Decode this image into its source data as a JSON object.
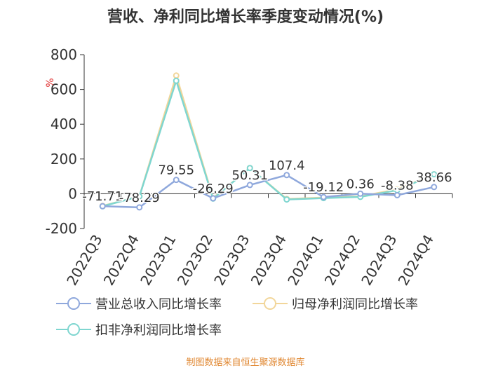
{
  "title": "营收、净利同比增长率季度变动情况(%)",
  "footer": "制图数据来自恒生聚源数据库",
  "colors": {
    "revenue": "#8fa8dc",
    "net_profit": "#f2d69a",
    "deducted_profit": "#7fd6d0",
    "axis": "#333333",
    "unit": "#e03030"
  },
  "chart_data": {
    "type": "line",
    "title": "营收、净利同比增长率季度变动情况(%)",
    "unit_label": "%",
    "categories": [
      "2022Q3",
      "2022Q4",
      "2023Q1",
      "2023Q2",
      "2023Q3",
      "2023Q4",
      "2024Q1",
      "2024Q2",
      "2024Q3",
      "2024Q4"
    ],
    "ylim": [
      -200,
      800
    ],
    "yticks": [
      -200,
      0,
      200,
      400,
      600,
      800
    ],
    "grid": false,
    "series": [
      {
        "name": "营业总收入同比增长率",
        "color_key": "revenue",
        "values": [
          -71.71,
          -78.29,
          79.55,
          -26.29,
          50.31,
          107.4,
          -19.12,
          0.36,
          -8.38,
          38.66
        ],
        "labels": [
          "-71.71",
          "-78.29",
          "79.55",
          "-26.29",
          "50.31",
          "107.4",
          "-19.12",
          "0.36",
          "-8.38",
          "38.66"
        ]
      },
      {
        "name": "归母净利润同比增长率",
        "color_key": "net_profit",
        "values": [
          -70,
          -15,
          680,
          -25,
          148,
          -30,
          -22,
          -15,
          25,
          112
        ]
      },
      {
        "name": "扣非净利润同比增长率",
        "color_key": "deducted_profit",
        "values": [
          -72,
          -15,
          650,
          -28,
          148,
          -33,
          -25,
          -18,
          20,
          112
        ]
      }
    ],
    "legend_position": "bottom"
  }
}
